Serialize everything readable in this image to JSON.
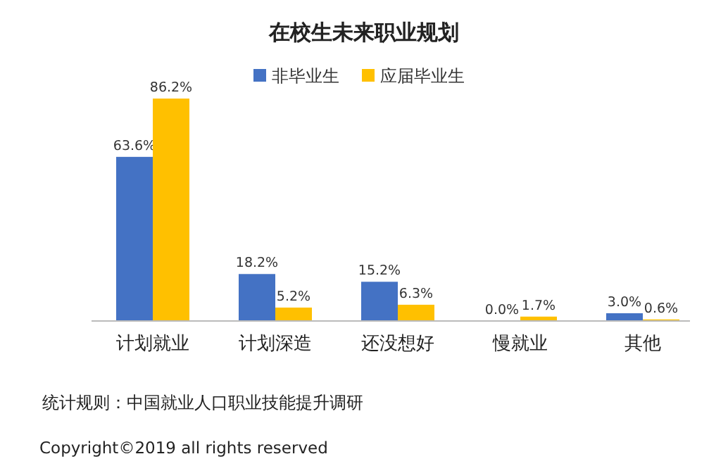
{
  "chart_data": {
    "type": "bar",
    "title": "在校生未来职业规划",
    "categories": [
      "计划就业",
      "计划深造",
      "还没想好",
      "慢就业",
      "其他"
    ],
    "series": [
      {
        "name": "非毕业生",
        "color": "#4472c4",
        "values": [
          63.6,
          18.2,
          15.2,
          0.0,
          3.0
        ],
        "value_labels": [
          "63.6%",
          "18.2%",
          "15.2%",
          "0.0%",
          "3.0%"
        ]
      },
      {
        "name": "应届毕业生",
        "color": "#ffc000",
        "values": [
          86.2,
          5.2,
          6.3,
          1.7,
          0.6
        ],
        "value_labels": [
          "86.2%",
          "5.2%",
          "6.3%",
          "1.7%",
          "0.6%"
        ]
      }
    ],
    "legend": "top",
    "annotations": [
      "统计规则：中国就业人口职业技能提升调研",
      "Copyright©2019 all rights reserved"
    ]
  }
}
